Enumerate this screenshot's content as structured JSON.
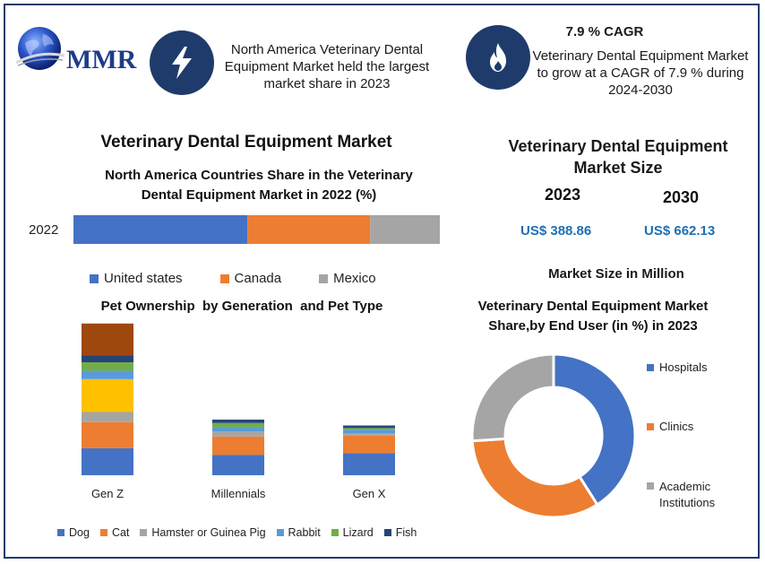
{
  "logo": {
    "text": "MMR"
  },
  "kpi1": {
    "text": "North America Veterinary Dental Equipment Market held the largest market share in 2023"
  },
  "kpi2": {
    "title": "7.9 % CAGR",
    "text": "Veterinary Dental Equipment Market to grow at a CAGR of 7.9 % during 2024-2030"
  },
  "main_title": "Veterinary Dental Equipment Market",
  "market_size": {
    "title": "Veterinary Dental Equipment Market Size",
    "year1": "2023",
    "year2": "2030",
    "value1": "US$ 388.86",
    "value2": "US$ 662.13",
    "unit_note": "Market Size in Million"
  },
  "colors": {
    "blue": "#4472c4",
    "orange": "#ed7d31",
    "gray": "#a5a5a5",
    "yellow": "#ffc000",
    "lightblue": "#5b9bd5",
    "green": "#70ad47",
    "navy": "#264478",
    "brown": "#9e480e",
    "frame": "#1f3b6b"
  },
  "chart_data": [
    {
      "type": "bar",
      "orientation": "horizontal-stacked-100",
      "title": "North America Countries Share in the Veterinary Dental Equipment Market in 2022 (%)",
      "categories": [
        "2022"
      ],
      "series": [
        {
          "name": "United states",
          "values": [
            47.5
          ],
          "color": "#4472c4"
        },
        {
          "name": "Canada",
          "values": [
            33.5
          ],
          "color": "#ed7d31"
        },
        {
          "name": "Mexico",
          "values": [
            19.0
          ],
          "color": "#a5a5a5"
        }
      ],
      "legend": "bottom"
    },
    {
      "type": "bar",
      "orientation": "vertical-stacked",
      "title": "Pet Ownership  by Generation  and Pet Type",
      "categories": [
        "Gen Z",
        "Millennials",
        "Gen X"
      ],
      "series": [
        {
          "name": "Dog",
          "values": [
            32,
            24,
            26
          ],
          "color": "#4472c4"
        },
        {
          "name": "Cat",
          "values": [
            31,
            22,
            21
          ],
          "color": "#ed7d31"
        },
        {
          "name": "Hamster or Guinea Pig",
          "values": [
            12,
            6,
            3
          ],
          "color": "#a5a5a5"
        },
        {
          "name": "",
          "values": [
            39,
            0,
            0
          ],
          "color": "#ffc000"
        },
        {
          "name": "Rabbit",
          "values": [
            10,
            5,
            4
          ],
          "color": "#5b9bd5"
        },
        {
          "name": "Lizard",
          "values": [
            10,
            5,
            2
          ],
          "color": "#70ad47"
        },
        {
          "name": "Fish",
          "values": [
            8,
            4,
            3
          ],
          "color": "#264478"
        },
        {
          "name": "",
          "values": [
            38,
            0,
            0
          ],
          "color": "#9e480e"
        }
      ],
      "legend": "bottom"
    },
    {
      "type": "pie",
      "variant": "donut",
      "title": "Veterinary Dental Equipment Market Share,by End User (in %) in 2023",
      "labels": [
        "Hospitals",
        "Clinics",
        "Academic Institutions"
      ],
      "values": [
        41,
        33,
        26
      ],
      "colors": [
        "#4472c4",
        "#ed7d31",
        "#a5a5a5"
      ],
      "legend": "right"
    }
  ]
}
